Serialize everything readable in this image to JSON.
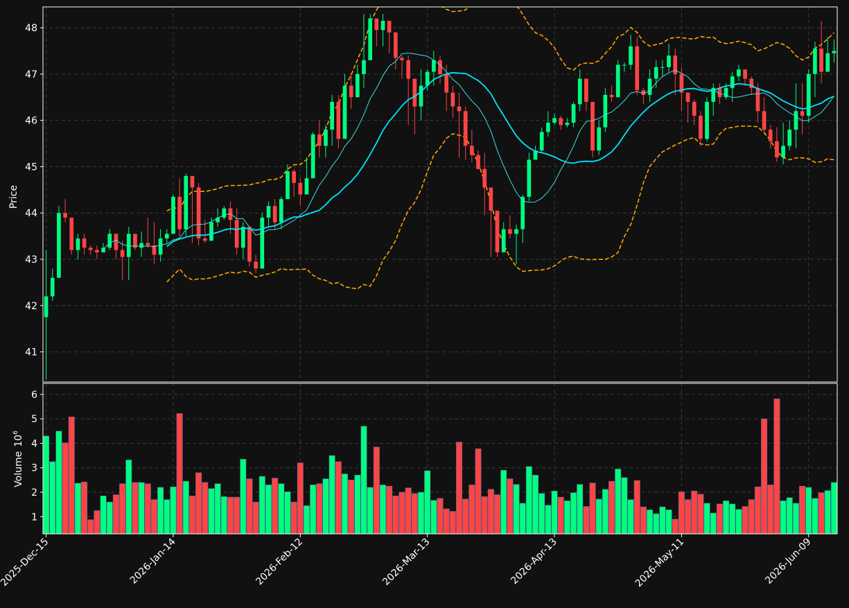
{
  "chart_data": {
    "type": "candlestick",
    "colors": {
      "background": "#111111",
      "up": "#00ff7f",
      "down": "#ff4444",
      "sma_fast": "#40e0e0",
      "sma_slow": "#00e5ff",
      "bollinger": "#ffa500",
      "grid": "#3a3a3a",
      "text": "#ffffff"
    },
    "price_panel": {
      "ylabel": "Price",
      "ylim": [
        40.35,
        48.45
      ],
      "yticks": [
        41,
        42,
        43,
        44,
        45,
        46,
        47,
        48
      ]
    },
    "volume_panel": {
      "ylabel": "Volume",
      "ylabel_exponent": "10",
      "ylabel_exponent_power": "6",
      "ylim": [
        0.3,
        6.45
      ],
      "yticks": [
        1,
        2,
        3,
        4,
        5,
        6
      ]
    },
    "x_axis": {
      "num_bars": 125,
      "xlim": [
        -0.5,
        124.5
      ],
      "tick_indices": [
        0,
        20,
        40,
        60,
        80,
        100,
        120
      ],
      "tick_labels": [
        "2025-Dec-15",
        "2026-Jan-14",
        "2026-Feb-12",
        "2026-Mar-13",
        "2026-Apr-13",
        "2026-May-11",
        "2026-Jun-09"
      ]
    },
    "close": [
      42.2,
      42.6,
      44.0,
      43.9,
      43.2,
      43.45,
      43.25,
      43.2,
      43.15,
      43.25,
      43.55,
      43.2,
      43.05,
      43.55,
      43.25,
      43.35,
      43.3,
      43.1,
      43.45,
      43.55,
      44.35,
      43.65,
      44.8,
      44.55,
      43.45,
      43.4,
      43.8,
      43.9,
      44.1,
      43.85,
      43.25,
      43.7,
      42.95,
      42.8,
      43.9,
      44.15,
      43.8,
      44.3,
      44.9,
      44.65,
      44.4,
      44.75,
      45.7,
      45.45,
      45.8,
      46.4,
      45.6,
      46.75,
      46.5,
      47.0,
      47.3,
      48.2,
      47.95,
      48.15,
      47.9,
      47.35,
      47.3,
      46.9,
      46.3,
      46.75,
      47.05,
      47.3,
      47.0,
      46.6,
      46.3,
      46.2,
      45.45,
      45.25,
      44.95,
      44.55,
      44.05,
      43.15,
      43.65,
      43.55,
      43.65,
      44.35,
      45.15,
      45.35,
      45.75,
      45.95,
      46.05,
      45.9,
      45.95,
      46.35,
      46.9,
      46.4,
      45.35,
      45.85,
      46.55,
      46.5,
      47.2,
      47.2,
      47.6,
      46.65,
      46.55,
      46.9,
      47.15,
      47.15,
      47.4,
      47.0,
      46.6,
      46.4,
      46.1,
      45.6,
      46.4,
      46.7,
      46.5,
      46.7,
      46.95,
      47.1,
      46.9,
      46.7,
      46.2,
      45.8,
      45.55,
      45.2,
      45.45,
      45.8,
      46.2,
      46.1,
      47.0,
      47.55,
      47.05,
      47.45,
      47.5
    ],
    "high": [
      43.2,
      42.8,
      44.15,
      44.3,
      43.25,
      43.55,
      43.55,
      43.3,
      43.3,
      43.35,
      43.65,
      43.4,
      43.4,
      43.7,
      43.55,
      43.6,
      43.9,
      43.8,
      43.65,
      43.65,
      44.4,
      44.75,
      44.85,
      44.75,
      44.65,
      43.85,
      43.9,
      44.1,
      44.15,
      44.25,
      44.1,
      43.8,
      43.2,
      43.1,
      44.0,
      44.25,
      44.3,
      44.35,
      45.05,
      44.95,
      44.75,
      45.2,
      45.75,
      46.0,
      45.9,
      46.55,
      46.55,
      47.0,
      47.0,
      47.2,
      48.3,
      48.3,
      48.05,
      48.3,
      48.05,
      47.9,
      47.4,
      47.4,
      46.9,
      47.1,
      47.1,
      47.5,
      47.4,
      47.2,
      46.75,
      46.6,
      46.3,
      45.8,
      45.35,
      45.3,
      44.55,
      44.05,
      43.8,
      43.95,
      43.75,
      44.4,
      45.3,
      45.45,
      45.85,
      46.2,
      46.15,
      46.1,
      46.05,
      46.4,
      47.1,
      46.9,
      46.4,
      46.0,
      46.7,
      46.75,
      47.3,
      47.25,
      47.85,
      47.8,
      46.7,
      47.1,
      47.3,
      47.3,
      47.65,
      47.55,
      47.15,
      46.6,
      46.45,
      46.2,
      46.5,
      46.8,
      46.8,
      46.8,
      47.05,
      47.2,
      47.1,
      46.95,
      46.8,
      46.5,
      45.9,
      45.85,
      45.95,
      46.0,
      46.8,
      46.8,
      47.1,
      47.7,
      48.15,
      47.8,
      47.75
    ],
    "low": [
      40.4,
      42.1,
      42.8,
      43.8,
      43.1,
      43.0,
      43.1,
      43.1,
      43.0,
      43.15,
      43.2,
      43.0,
      42.55,
      42.55,
      43.2,
      43.05,
      43.25,
      42.9,
      42.95,
      43.35,
      43.55,
      43.5,
      43.5,
      43.35,
      43.3,
      43.35,
      43.4,
      43.7,
      43.85,
      43.55,
      43.1,
      43.0,
      42.85,
      42.7,
      43.15,
      43.7,
      43.65,
      43.65,
      44.5,
      44.35,
      44.15,
      44.45,
      45.25,
      45.2,
      45.2,
      45.45,
      45.4,
      46.35,
      46.25,
      46.6,
      46.7,
      47.6,
      47.6,
      47.6,
      47.45,
      47.1,
      46.9,
      45.9,
      45.7,
      46.0,
      46.65,
      46.75,
      46.8,
      46.2,
      46.05,
      45.2,
      45.15,
      45.1,
      44.95,
      43.95,
      43.05,
      43.05,
      43.3,
      43.45,
      42.9,
      43.35,
      44.25,
      45.25,
      45.3,
      45.65,
      45.9,
      45.8,
      45.85,
      45.85,
      46.2,
      46.2,
      45.2,
      45.25,
      45.75,
      46.4,
      46.55,
      47.05,
      47.1,
      46.55,
      46.35,
      46.4,
      46.7,
      46.95,
      47.05,
      46.55,
      46.2,
      45.95,
      45.9,
      45.45,
      45.55,
      46.1,
      46.35,
      46.45,
      46.4,
      46.85,
      46.75,
      46.55,
      45.95,
      45.7,
      45.4,
      45.1,
      45.05,
      45.35,
      45.4,
      45.7,
      45.95,
      46.5,
      46.8,
      47.1,
      47.25
    ],
    "volume": [
      4.3,
      3.25,
      4.5,
      4.02,
      5.08,
      2.37,
      2.42,
      0.88,
      1.25,
      1.85,
      1.6,
      1.9,
      2.35,
      3.32,
      2.4,
      2.4,
      2.35,
      1.7,
      2.2,
      1.7,
      2.22,
      5.22,
      2.45,
      1.85,
      2.8,
      2.4,
      2.15,
      2.35,
      1.82,
      1.8,
      1.8,
      3.35,
      2.55,
      1.6,
      2.65,
      2.3,
      2.58,
      2.35,
      2.02,
      1.6,
      3.2,
      1.45,
      2.3,
      2.35,
      2.55,
      3.5,
      3.25,
      2.75,
      2.5,
      2.7,
      4.7,
      2.2,
      3.85,
      2.3,
      2.25,
      1.85,
      2.0,
      2.18,
      1.95,
      2.0,
      2.88,
      1.67,
      1.75,
      1.32,
      1.22,
      4.05,
      1.72,
      2.3,
      3.78,
      1.82,
      2.12,
      1.9,
      2.9,
      2.55,
      2.32,
      1.55,
      3.05,
      2.7,
      1.95,
      1.47,
      2.05,
      1.8,
      1.65,
      1.98,
      2.32,
      1.42,
      2.38,
      1.72,
      2.12,
      2.45,
      2.95,
      2.6,
      1.7,
      2.48,
      1.4,
      1.28,
      1.12,
      1.4,
      1.28,
      0.9,
      2.02,
      1.7,
      2.05,
      1.92,
      1.55,
      1.15,
      1.52,
      1.65,
      1.52,
      1.3,
      1.42,
      1.7,
      2.22,
      5.0,
      2.3,
      5.82,
      1.65,
      1.78,
      1.55,
      2.25,
      2.2,
      1.75,
      1.98,
      2.07,
      2.4
    ]
  }
}
